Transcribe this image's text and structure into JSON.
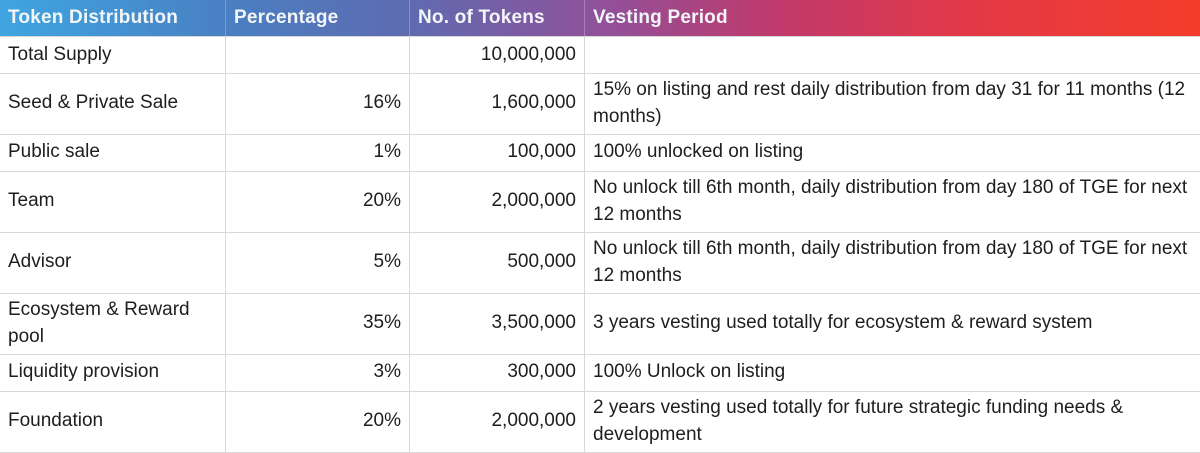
{
  "table": {
    "columns": [
      {
        "label": "Token Distribution"
      },
      {
        "label": "Percentage"
      },
      {
        "label": "No. of Tokens"
      },
      {
        "label": "Vesting Period"
      }
    ],
    "rows": [
      {
        "name": "Total Supply",
        "percentage": "",
        "tokens": "10,000,000",
        "vesting": ""
      },
      {
        "name": "Seed & Private Sale",
        "percentage": "16%",
        "tokens": "1,600,000",
        "vesting": "15% on listing and rest daily distribution from day 31 for 11 months (12 months)"
      },
      {
        "name": "Public sale",
        "percentage": "1%",
        "tokens": "100,000",
        "vesting": "100% unlocked on listing"
      },
      {
        "name": "Team",
        "percentage": "20%",
        "tokens": "2,000,000",
        "vesting": "No unlock till 6th month, daily distribution from day 180 of TGE for next 12 months"
      },
      {
        "name": "Advisor",
        "percentage": "5%",
        "tokens": "500,000",
        "vesting": "No unlock till 6th month, daily distribution from day 180 of TGE for next 12 months"
      },
      {
        "name": "Ecosystem & Reward pool",
        "percentage": "35%",
        "tokens": "3,500,000",
        "vesting": "3 years vesting used totally for ecosystem & reward system"
      },
      {
        "name": "Liquidity provision",
        "percentage": "3%",
        "tokens": "300,000",
        "vesting": "100% Unlock on listing"
      },
      {
        "name": "Foundation",
        "percentage": "20%",
        "tokens": "2,000,000",
        "vesting": "2 years vesting used totally for future strategic funding needs & development"
      }
    ]
  },
  "colors": {
    "header_gradient_start": "#3fa5e0",
    "header_gradient_mid": "#90519a",
    "header_gradient_end": "#f43c2a",
    "header_text": "#f3f6f8",
    "body_text": "#1e1e1e",
    "gridline": "#d8d8d8"
  }
}
